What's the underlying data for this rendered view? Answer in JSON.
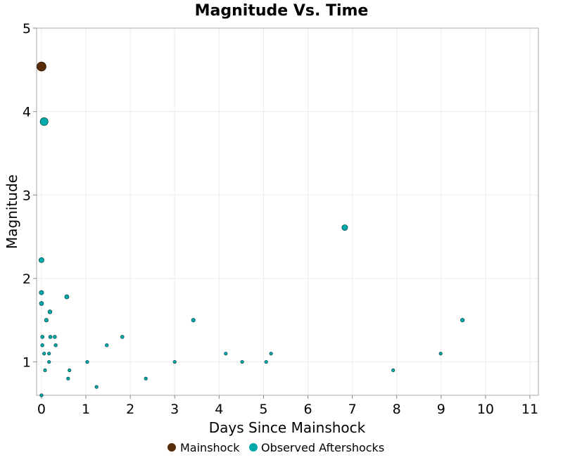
{
  "chart_data": {
    "type": "scatter",
    "title": "Magnitude Vs. Time",
    "xlabel": "Days Since Mainshock",
    "ylabel": "Magnitude",
    "xlim": [
      -0.11,
      11.19
    ],
    "ylim": [
      0.6,
      5
    ],
    "xticks": [
      0,
      1,
      2,
      3,
      4,
      5,
      6,
      7,
      8,
      9,
      10,
      11
    ],
    "yticks": [
      1,
      2,
      3,
      4,
      5
    ],
    "grid": true,
    "legend_placement": "bottom",
    "series": [
      {
        "name": "Mainshock",
        "color": "#5a2d0a",
        "points": [
          [
            0,
            4.54
          ]
        ]
      },
      {
        "name": "Observed Aftershocks",
        "color": "#00aaaa",
        "points": [
          [
            0.06,
            3.88
          ],
          [
            0.0,
            2.22
          ],
          [
            0.0,
            1.83
          ],
          [
            0.0,
            1.7
          ],
          [
            0.57,
            1.78
          ],
          [
            0.19,
            1.6
          ],
          [
            0.11,
            1.5
          ],
          [
            0.02,
            1.3
          ],
          [
            0.2,
            1.3
          ],
          [
            0.3,
            1.3
          ],
          [
            0.02,
            1.2
          ],
          [
            0.32,
            1.2
          ],
          [
            0.06,
            1.1
          ],
          [
            0.17,
            1.1
          ],
          [
            0.17,
            1.0
          ],
          [
            0.08,
            0.9
          ],
          [
            0.63,
            0.9
          ],
          [
            0.6,
            0.8
          ],
          [
            0.0,
            0.6
          ],
          [
            1.03,
            1.0
          ],
          [
            1.24,
            0.7
          ],
          [
            1.47,
            1.2
          ],
          [
            1.82,
            1.3
          ],
          [
            2.35,
            0.8
          ],
          [
            3.0,
            1.0
          ],
          [
            3.42,
            1.5
          ],
          [
            4.15,
            1.1
          ],
          [
            4.52,
            1.0
          ],
          [
            5.06,
            1.0
          ],
          [
            5.17,
            1.1
          ],
          [
            6.83,
            2.61
          ],
          [
            7.92,
            0.9
          ],
          [
            8.99,
            1.1
          ],
          [
            9.48,
            1.5
          ]
        ]
      }
    ]
  }
}
